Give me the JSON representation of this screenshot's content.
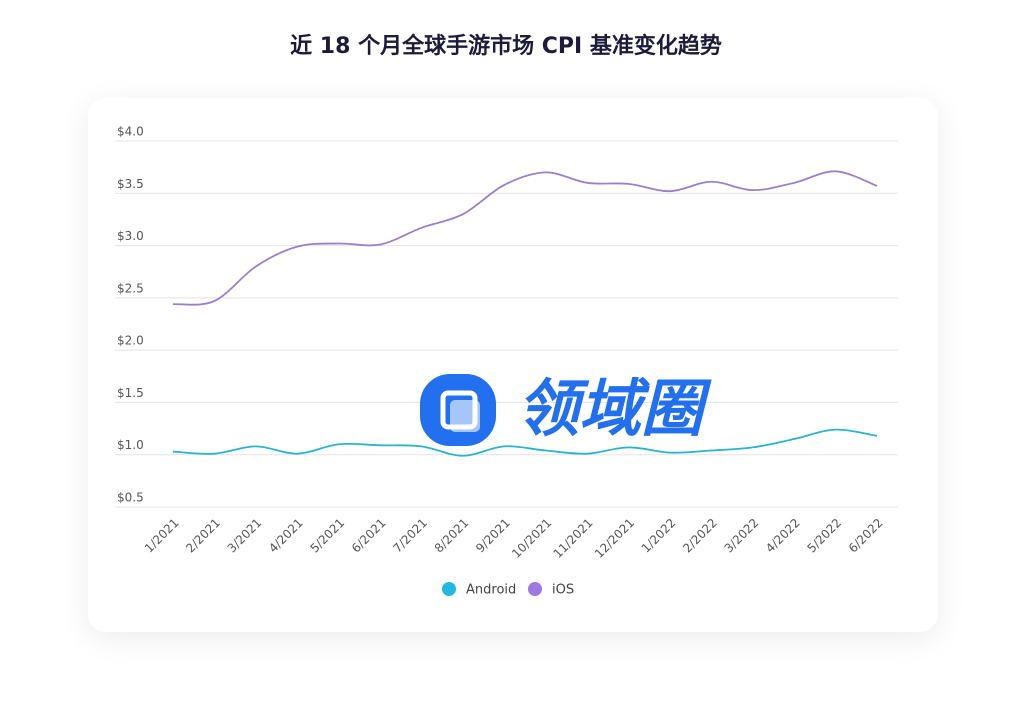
{
  "chart_data": {
    "type": "line",
    "title": "近 18 个月全球手游市场 CPI 基准变化趋势",
    "watermark": "领域圈",
    "categories": [
      "1/2021",
      "2/2021",
      "3/2021",
      "4/2021",
      "5/2021",
      "6/2021",
      "7/2021",
      "8/2021",
      "9/2021",
      "10/2021",
      "11/2021",
      "12/2021",
      "1/2022",
      "2/2022",
      "3/2022",
      "4/2022",
      "5/2022",
      "6/2022"
    ],
    "series": [
      {
        "name": "Android",
        "color": "#2ab3cc",
        "legend_color": "#22b8e0",
        "values": [
          1.03,
          1.01,
          1.08,
          1.01,
          1.1,
          1.09,
          1.08,
          0.99,
          1.08,
          1.04,
          1.01,
          1.07,
          1.02,
          1.04,
          1.07,
          1.15,
          1.24,
          1.18
        ]
      },
      {
        "name": "iOS",
        "color": "#9a80cc",
        "legend_color": "#9d78de",
        "values": [
          2.44,
          2.47,
          2.8,
          2.99,
          3.02,
          3.01,
          3.17,
          3.3,
          3.58,
          3.7,
          3.6,
          3.59,
          3.52,
          3.61,
          3.53,
          3.6,
          3.71,
          3.57
        ]
      }
    ],
    "ylim": [
      0.5,
      4.0
    ],
    "yticks": [
      {
        "value": 0.5,
        "label": "$0.5"
      },
      {
        "value": 1.0,
        "label": "$1.0"
      },
      {
        "value": 1.5,
        "label": "$1.5"
      },
      {
        "value": 2.0,
        "label": "$2.0"
      },
      {
        "value": 2.5,
        "label": "$2.5"
      },
      {
        "value": 3.0,
        "label": "$3.0"
      },
      {
        "value": 3.5,
        "label": "$3.5"
      },
      {
        "value": 4.0,
        "label": "$4.0"
      }
    ],
    "grid": true
  }
}
